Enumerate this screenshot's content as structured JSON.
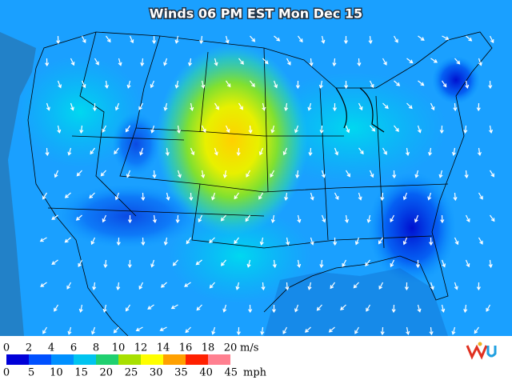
{
  "header": {
    "title": "Winds 06 PM EST Mon Dec 15"
  },
  "legend": {
    "colors": [
      "#0000d8",
      "#0050ff",
      "#0090ff",
      "#00c4f0",
      "#20d070",
      "#a8e000",
      "#ffff00",
      "#ffa000",
      "#ff2000",
      "#ff8090"
    ],
    "ms_labels": [
      0,
      2,
      4,
      6,
      8,
      10,
      12,
      14,
      16,
      18,
      20
    ],
    "ms_unit": "m/s",
    "mph_labels": [
      0,
      5,
      10,
      15,
      20,
      25,
      30,
      35,
      40,
      45
    ],
    "mph_unit": "mph"
  }
}
